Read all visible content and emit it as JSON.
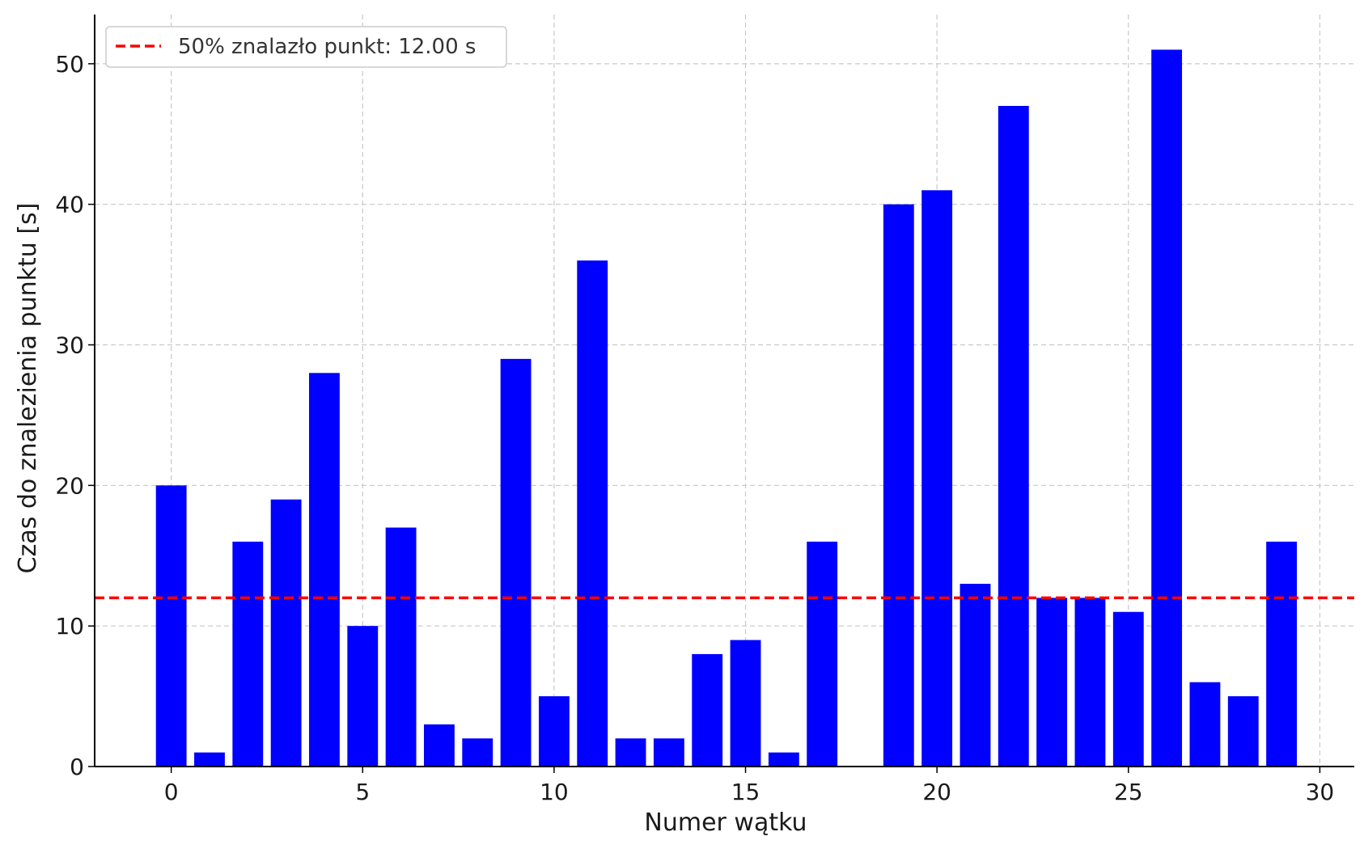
{
  "colors": {
    "bar": "#0000ff",
    "threshold_line": "#ff0000",
    "grid": "#c8c8c8",
    "axis": "#000000",
    "legend_border": "#cccccc"
  },
  "chart_data": {
    "type": "bar",
    "title": "",
    "xlabel": "Numer wątku",
    "ylabel": "Czas do znalezienia punktu [s]",
    "x": [
      0,
      1,
      2,
      3,
      4,
      5,
      6,
      7,
      8,
      9,
      10,
      11,
      12,
      13,
      14,
      15,
      16,
      17,
      18,
      19,
      20,
      21,
      22,
      23,
      24,
      25,
      26,
      27,
      28,
      29
    ],
    "values": [
      20,
      1,
      16,
      19,
      28,
      10,
      17,
      3,
      2,
      29,
      5,
      36,
      2,
      2,
      8,
      9,
      1,
      16,
      0,
      40,
      41,
      13,
      47,
      12,
      12,
      11,
      51,
      6,
      5,
      16
    ],
    "xlim": [
      -2,
      30.9
    ],
    "ylim": [
      0,
      53.5
    ],
    "xticks": [
      0,
      5,
      10,
      15,
      20,
      25,
      30
    ],
    "yticks": [
      0,
      10,
      20,
      30,
      40,
      50
    ],
    "grid": true,
    "threshold": {
      "value": 12.0,
      "label": "50% znalazło punkt: 12.00 s",
      "style": "dashed"
    },
    "legend": {
      "position": "top-left",
      "entries": [
        "50% znalazło punkt: 12.00 s"
      ]
    }
  }
}
